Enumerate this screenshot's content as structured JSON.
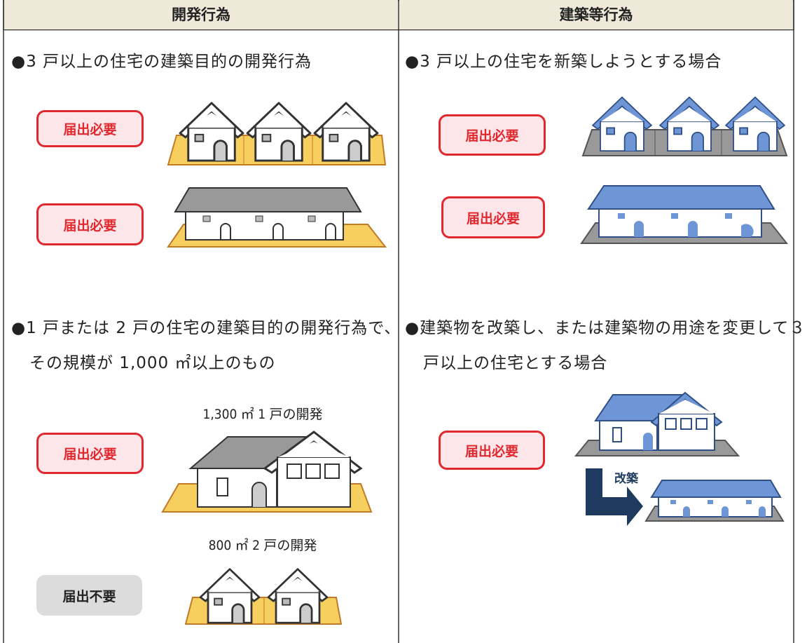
{
  "header": {
    "left": "開発行為",
    "right": "建築等行為"
  },
  "left": {
    "item1": {
      "text": "●3 戸以上の住宅の建築目的の開発行為",
      "badges": [
        "届出必要",
        "届出必要"
      ]
    },
    "item2": {
      "text": "●1 戸または 2 戸の住宅の建築目的の開発行為で、その規模が 1,000 ㎡以上のもの",
      "cases": [
        {
          "label": "1,300 ㎡ 1 戸の開発",
          "badge": "届出必要"
        },
        {
          "label": "800 ㎡ 2 戸の開発",
          "badge": "届出不要"
        }
      ]
    }
  },
  "right": {
    "item1": {
      "text": "●3 戸以上の住宅を新築しようとする場合",
      "badges": [
        "届出必要",
        "届出必要"
      ]
    },
    "item2": {
      "text": "●建築物を改築し、または建築物の用途を変更して３戸以上の住宅とする場合",
      "badge": "届出必要",
      "arrow_label": "改築"
    }
  }
}
